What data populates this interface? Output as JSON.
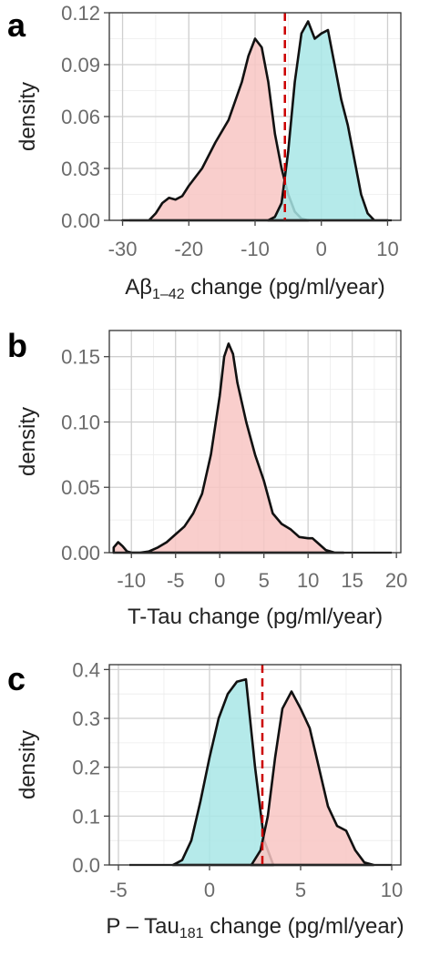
{
  "chart_data": [
    {
      "panel": "a",
      "type": "area",
      "ylabel": "density",
      "xlabel": "Aβ1–42 change (pg/ml/year)",
      "xlabel_main": "Aβ",
      "xlabel_sub": "1–42",
      "xlabel_rest": " change (pg/ml/year)",
      "xlim": [
        -32,
        12
      ],
      "ylim": [
        0,
        0.12
      ],
      "xticks": [
        -30,
        -20,
        -10,
        0,
        10
      ],
      "yticks": [
        0.0,
        0.03,
        0.06,
        0.09,
        0.12
      ],
      "ytick_labels": [
        "0.00",
        "0.03",
        "0.06",
        "0.09",
        "0.12"
      ],
      "grid": true,
      "cutoff_x": -5.5,
      "series": [
        {
          "color": "#f8c6c3",
          "x": [
            -30,
            -26,
            -25,
            -24,
            -23,
            -22,
            -21,
            -20,
            -18,
            -16,
            -14,
            -12,
            -11,
            -10,
            -9,
            -8,
            -7,
            -6,
            -5,
            -4,
            -3,
            -2
          ],
          "y": [
            0,
            0,
            0.004,
            0.01,
            0.013,
            0.012,
            0.014,
            0.02,
            0.03,
            0.045,
            0.058,
            0.08,
            0.095,
            0.105,
            0.1,
            0.08,
            0.05,
            0.03,
            0.015,
            0.005,
            0.001,
            0
          ]
        },
        {
          "color": "#a8e6e6",
          "x": [
            -8,
            -7,
            -6,
            -5,
            -4,
            -3,
            -2,
            -1,
            0,
            1,
            2,
            3,
            4,
            5,
            6,
            7,
            8,
            10
          ],
          "y": [
            0,
            0.002,
            0.01,
            0.04,
            0.08,
            0.108,
            0.115,
            0.105,
            0.108,
            0.11,
            0.09,
            0.07,
            0.055,
            0.035,
            0.015,
            0.004,
            0,
            0
          ]
        }
      ]
    },
    {
      "panel": "b",
      "type": "area",
      "ylabel": "density",
      "xlabel": "T-Tau change (pg/ml/year)",
      "xlim": [
        -12.5,
        20.5
      ],
      "ylim": [
        0,
        0.17
      ],
      "xticks": [
        -10,
        -5,
        0,
        5,
        10,
        15,
        20
      ],
      "yticks": [
        0.0,
        0.05,
        0.1,
        0.15
      ],
      "ytick_labels": [
        "0.00",
        "0.05",
        "0.10",
        "0.15"
      ],
      "grid": true,
      "series": [
        {
          "color": "#f8c6c3",
          "x": [
            -12,
            -11.5,
            -11,
            -10.5,
            -10,
            -9,
            -8,
            -7,
            -6,
            -5,
            -4,
            -3,
            -2,
            -1,
            0,
            0.5,
            1,
            1.5,
            2,
            3,
            4,
            5,
            6,
            7,
            8,
            9,
            10,
            10.5,
            11,
            12,
            13,
            14
          ],
          "y": [
            0.004,
            0.008,
            0.005,
            0.001,
            0,
            0,
            0.001,
            0.004,
            0.008,
            0.014,
            0.02,
            0.03,
            0.045,
            0.075,
            0.12,
            0.15,
            0.16,
            0.152,
            0.13,
            0.1,
            0.075,
            0.055,
            0.03,
            0.022,
            0.018,
            0.012,
            0.011,
            0.011,
            0.008,
            0.002,
            0,
            0
          ]
        }
      ]
    },
    {
      "panel": "c",
      "type": "area",
      "ylabel": "density",
      "xlabel": "P – Tau181 change (pg/ml/year)",
      "xlabel_main": "P – Tau",
      "xlabel_sub": "181",
      "xlabel_rest": " change (pg/ml/year)",
      "xlim": [
        -5.5,
        10.5
      ],
      "ylim": [
        0,
        0.41
      ],
      "xticks": [
        -5,
        0,
        5,
        10
      ],
      "yticks": [
        0.0,
        0.1,
        0.2,
        0.3,
        0.4
      ],
      "ytick_labels": [
        "0.0",
        "0.1",
        "0.2",
        "0.3",
        "0.4"
      ],
      "grid": true,
      "cutoff_x": 2.9,
      "series": [
        {
          "color": "#a8e6e6",
          "x": [
            -2,
            -1.5,
            -1,
            -0.5,
            0,
            0.5,
            1,
            1.5,
            2,
            2.5,
            3,
            3.5
          ],
          "y": [
            0,
            0.01,
            0.05,
            0.13,
            0.22,
            0.3,
            0.35,
            0.375,
            0.38,
            0.2,
            0.05,
            0
          ]
        },
        {
          "color": "#f8c6c3",
          "x": [
            2.3,
            2.8,
            3.2,
            3.6,
            4,
            4.5,
            5,
            5.5,
            6,
            6.5,
            7,
            7.5,
            8,
            8.5,
            9
          ],
          "y": [
            0,
            0.03,
            0.1,
            0.22,
            0.32,
            0.355,
            0.32,
            0.28,
            0.2,
            0.12,
            0.08,
            0.07,
            0.03,
            0.005,
            0
          ]
        }
      ]
    }
  ]
}
